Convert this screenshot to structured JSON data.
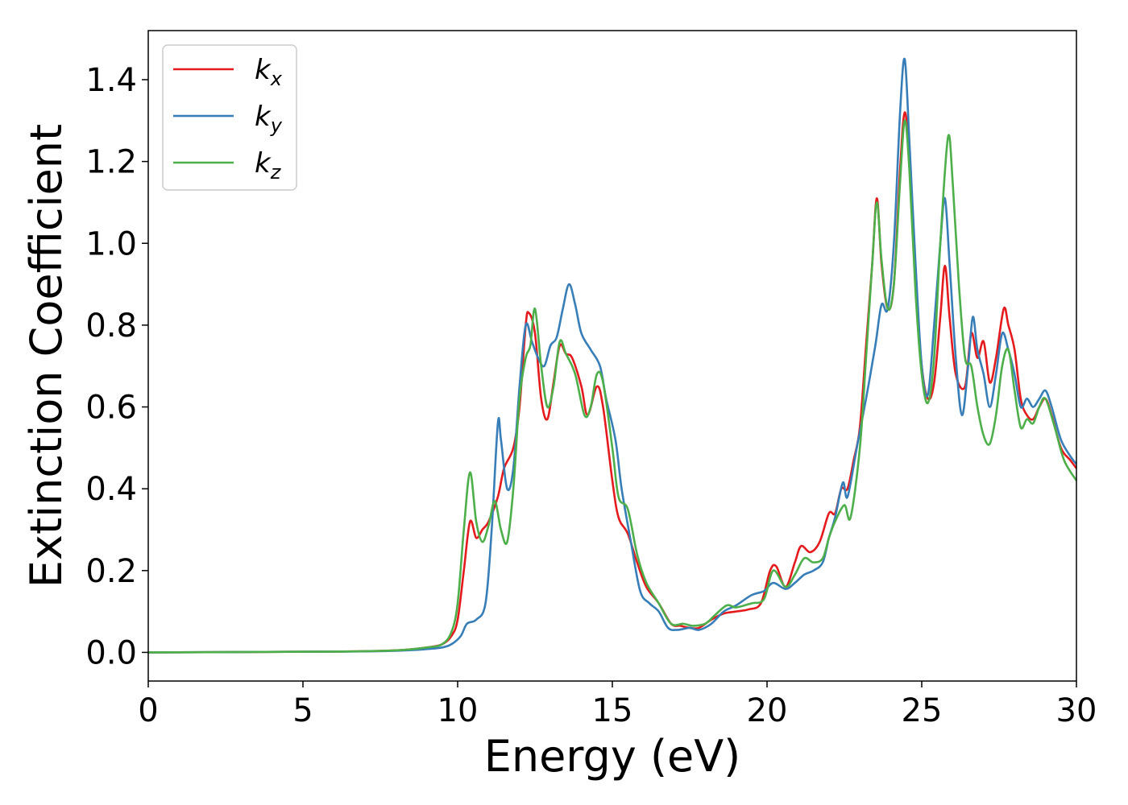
{
  "chart_data": {
    "type": "line",
    "title": "",
    "xlabel": "Energy (eV)",
    "ylabel": "Extinction Coefficient",
    "xlim": [
      0,
      30
    ],
    "ylim": [
      -0.07,
      1.52
    ],
    "xticks": [
      0,
      5,
      10,
      15,
      20,
      25,
      30
    ],
    "xtick_labels": [
      "0",
      "5",
      "10",
      "15",
      "20",
      "25",
      "30"
    ],
    "yticks": [
      0.0,
      0.2,
      0.4,
      0.6,
      0.8,
      1.0,
      1.2,
      1.4
    ],
    "ytick_labels": [
      "0.0",
      "0.2",
      "0.4",
      "0.6",
      "0.8",
      "1.0",
      "1.2",
      "1.4"
    ],
    "grid": false,
    "legend_position": "top-left",
    "series": [
      {
        "name": "k",
        "subscript": "x",
        "color": "#e41a1c",
        "points": [
          [
            0,
            0
          ],
          [
            6,
            0.002
          ],
          [
            8,
            0.005
          ],
          [
            9,
            0.012
          ],
          [
            9.5,
            0.02
          ],
          [
            9.8,
            0.04
          ],
          [
            10.0,
            0.08
          ],
          [
            10.2,
            0.2
          ],
          [
            10.4,
            0.32
          ],
          [
            10.6,
            0.28
          ],
          [
            10.8,
            0.3
          ],
          [
            11.0,
            0.32
          ],
          [
            11.3,
            0.38
          ],
          [
            11.5,
            0.45
          ],
          [
            11.8,
            0.5
          ],
          [
            12.0,
            0.6
          ],
          [
            12.2,
            0.8
          ],
          [
            12.3,
            0.83
          ],
          [
            12.5,
            0.78
          ],
          [
            12.7,
            0.62
          ],
          [
            12.9,
            0.57
          ],
          [
            13.1,
            0.66
          ],
          [
            13.3,
            0.75
          ],
          [
            13.5,
            0.73
          ],
          [
            13.7,
            0.72
          ],
          [
            14.0,
            0.65
          ],
          [
            14.2,
            0.58
          ],
          [
            14.5,
            0.65
          ],
          [
            14.7,
            0.6
          ],
          [
            15.0,
            0.42
          ],
          [
            15.2,
            0.33
          ],
          [
            15.5,
            0.29
          ],
          [
            15.8,
            0.22
          ],
          [
            16.1,
            0.16
          ],
          [
            16.5,
            0.12
          ],
          [
            16.9,
            0.07
          ],
          [
            17.2,
            0.065
          ],
          [
            17.5,
            0.06
          ],
          [
            17.8,
            0.06
          ],
          [
            18.2,
            0.08
          ],
          [
            18.6,
            0.095
          ],
          [
            19.0,
            0.1
          ],
          [
            19.4,
            0.105
          ],
          [
            19.8,
            0.12
          ],
          [
            20.1,
            0.2
          ],
          [
            20.3,
            0.21
          ],
          [
            20.6,
            0.16
          ],
          [
            20.9,
            0.22
          ],
          [
            21.1,
            0.26
          ],
          [
            21.4,
            0.245
          ],
          [
            21.7,
            0.27
          ],
          [
            22.0,
            0.34
          ],
          [
            22.2,
            0.34
          ],
          [
            22.4,
            0.4
          ],
          [
            22.6,
            0.4
          ],
          [
            22.8,
            0.47
          ],
          [
            23.0,
            0.55
          ],
          [
            23.2,
            0.75
          ],
          [
            23.4,
            0.95
          ],
          [
            23.55,
            1.11
          ],
          [
            23.7,
            0.95
          ],
          [
            23.9,
            0.84
          ],
          [
            24.1,
            0.9
          ],
          [
            24.3,
            1.18
          ],
          [
            24.45,
            1.32
          ],
          [
            24.6,
            1.2
          ],
          [
            24.8,
            0.9
          ],
          [
            25.0,
            0.7
          ],
          [
            25.2,
            0.62
          ],
          [
            25.4,
            0.66
          ],
          [
            25.6,
            0.82
          ],
          [
            25.75,
            0.945
          ],
          [
            25.9,
            0.82
          ],
          [
            26.1,
            0.68
          ],
          [
            26.4,
            0.65
          ],
          [
            26.6,
            0.78
          ],
          [
            26.8,
            0.72
          ],
          [
            27.0,
            0.76
          ],
          [
            27.2,
            0.66
          ],
          [
            27.4,
            0.72
          ],
          [
            27.65,
            0.84
          ],
          [
            27.8,
            0.8
          ],
          [
            28.0,
            0.74
          ],
          [
            28.2,
            0.62
          ],
          [
            28.4,
            0.58
          ],
          [
            28.6,
            0.57
          ],
          [
            28.8,
            0.6
          ],
          [
            29.0,
            0.62
          ],
          [
            29.2,
            0.58
          ],
          [
            29.5,
            0.5
          ],
          [
            29.8,
            0.47
          ],
          [
            30,
            0.45
          ]
        ]
      },
      {
        "name": "k",
        "subscript": "y",
        "color": "#377eb8",
        "points": [
          [
            0,
            0
          ],
          [
            6,
            0.002
          ],
          [
            8,
            0.004
          ],
          [
            9,
            0.008
          ],
          [
            9.5,
            0.012
          ],
          [
            9.8,
            0.02
          ],
          [
            10.1,
            0.04
          ],
          [
            10.3,
            0.07
          ],
          [
            10.6,
            0.08
          ],
          [
            10.9,
            0.12
          ],
          [
            11.1,
            0.3
          ],
          [
            11.3,
            0.56
          ],
          [
            11.4,
            0.52
          ],
          [
            11.6,
            0.4
          ],
          [
            11.8,
            0.45
          ],
          [
            12.0,
            0.65
          ],
          [
            12.2,
            0.8
          ],
          [
            12.4,
            0.76
          ],
          [
            12.6,
            0.72
          ],
          [
            12.8,
            0.7
          ],
          [
            13.0,
            0.75
          ],
          [
            13.2,
            0.77
          ],
          [
            13.4,
            0.84
          ],
          [
            13.6,
            0.9
          ],
          [
            13.8,
            0.85
          ],
          [
            14.0,
            0.78
          ],
          [
            14.3,
            0.74
          ],
          [
            14.6,
            0.7
          ],
          [
            14.8,
            0.62
          ],
          [
            15.1,
            0.52
          ],
          [
            15.3,
            0.4
          ],
          [
            15.6,
            0.27
          ],
          [
            15.9,
            0.15
          ],
          [
            16.2,
            0.12
          ],
          [
            16.5,
            0.1
          ],
          [
            16.8,
            0.06
          ],
          [
            17.1,
            0.055
          ],
          [
            17.5,
            0.06
          ],
          [
            17.8,
            0.055
          ],
          [
            18.2,
            0.07
          ],
          [
            18.6,
            0.1
          ],
          [
            19.0,
            0.115
          ],
          [
            19.5,
            0.14
          ],
          [
            19.9,
            0.15
          ],
          [
            20.2,
            0.17
          ],
          [
            20.6,
            0.155
          ],
          [
            20.9,
            0.17
          ],
          [
            21.2,
            0.19
          ],
          [
            21.5,
            0.2
          ],
          [
            21.8,
            0.22
          ],
          [
            22.0,
            0.28
          ],
          [
            22.2,
            0.33
          ],
          [
            22.45,
            0.415
          ],
          [
            22.6,
            0.38
          ],
          [
            22.9,
            0.5
          ],
          [
            23.2,
            0.62
          ],
          [
            23.5,
            0.75
          ],
          [
            23.7,
            0.85
          ],
          [
            23.9,
            0.84
          ],
          [
            24.1,
            1.0
          ],
          [
            24.3,
            1.32
          ],
          [
            24.45,
            1.45
          ],
          [
            24.6,
            1.25
          ],
          [
            24.8,
            0.95
          ],
          [
            25.0,
            0.7
          ],
          [
            25.2,
            0.63
          ],
          [
            25.4,
            0.8
          ],
          [
            25.6,
            1.0
          ],
          [
            25.75,
            1.11
          ],
          [
            25.9,
            0.95
          ],
          [
            26.1,
            0.72
          ],
          [
            26.3,
            0.58
          ],
          [
            26.5,
            0.7
          ],
          [
            26.65,
            0.82
          ],
          [
            26.8,
            0.74
          ],
          [
            27.0,
            0.68
          ],
          [
            27.2,
            0.6
          ],
          [
            27.4,
            0.68
          ],
          [
            27.6,
            0.78
          ],
          [
            27.8,
            0.74
          ],
          [
            28.0,
            0.68
          ],
          [
            28.2,
            0.6
          ],
          [
            28.4,
            0.62
          ],
          [
            28.6,
            0.6
          ],
          [
            28.8,
            0.62
          ],
          [
            29.0,
            0.64
          ],
          [
            29.2,
            0.6
          ],
          [
            29.5,
            0.52
          ],
          [
            29.8,
            0.48
          ],
          [
            30,
            0.46
          ]
        ]
      },
      {
        "name": "k",
        "subscript": "z",
        "color": "#4daf4a",
        "points": [
          [
            0,
            0
          ],
          [
            6,
            0.002
          ],
          [
            8,
            0.005
          ],
          [
            9,
            0.012
          ],
          [
            9.5,
            0.02
          ],
          [
            9.8,
            0.05
          ],
          [
            10.0,
            0.12
          ],
          [
            10.2,
            0.3
          ],
          [
            10.4,
            0.44
          ],
          [
            10.6,
            0.32
          ],
          [
            10.8,
            0.27
          ],
          [
            11.0,
            0.31
          ],
          [
            11.2,
            0.37
          ],
          [
            11.4,
            0.3
          ],
          [
            11.6,
            0.27
          ],
          [
            11.8,
            0.4
          ],
          [
            12.0,
            0.62
          ],
          [
            12.2,
            0.72
          ],
          [
            12.35,
            0.75
          ],
          [
            12.5,
            0.84
          ],
          [
            12.7,
            0.7
          ],
          [
            12.9,
            0.6
          ],
          [
            13.1,
            0.65
          ],
          [
            13.3,
            0.76
          ],
          [
            13.5,
            0.73
          ],
          [
            13.8,
            0.68
          ],
          [
            14.1,
            0.58
          ],
          [
            14.3,
            0.6
          ],
          [
            14.5,
            0.68
          ],
          [
            14.7,
            0.66
          ],
          [
            15.0,
            0.5
          ],
          [
            15.2,
            0.38
          ],
          [
            15.5,
            0.35
          ],
          [
            15.8,
            0.24
          ],
          [
            16.1,
            0.17
          ],
          [
            16.5,
            0.12
          ],
          [
            16.9,
            0.07
          ],
          [
            17.3,
            0.07
          ],
          [
            17.6,
            0.065
          ],
          [
            18.0,
            0.07
          ],
          [
            18.3,
            0.09
          ],
          [
            18.7,
            0.115
          ],
          [
            19.0,
            0.11
          ],
          [
            19.5,
            0.12
          ],
          [
            19.9,
            0.13
          ],
          [
            20.2,
            0.2
          ],
          [
            20.6,
            0.16
          ],
          [
            20.9,
            0.19
          ],
          [
            21.2,
            0.23
          ],
          [
            21.5,
            0.22
          ],
          [
            21.8,
            0.23
          ],
          [
            22.0,
            0.28
          ],
          [
            22.2,
            0.32
          ],
          [
            22.5,
            0.36
          ],
          [
            22.7,
            0.33
          ],
          [
            23.0,
            0.5
          ],
          [
            23.2,
            0.72
          ],
          [
            23.4,
            0.95
          ],
          [
            23.55,
            1.1
          ],
          [
            23.7,
            0.96
          ],
          [
            23.9,
            0.84
          ],
          [
            24.1,
            0.9
          ],
          [
            24.3,
            1.15
          ],
          [
            24.45,
            1.3
          ],
          [
            24.6,
            1.18
          ],
          [
            24.8,
            0.88
          ],
          [
            25.0,
            0.68
          ],
          [
            25.2,
            0.61
          ],
          [
            25.4,
            0.72
          ],
          [
            25.6,
            1.0
          ],
          [
            25.85,
            1.26
          ],
          [
            26.0,
            1.15
          ],
          [
            26.2,
            0.9
          ],
          [
            26.4,
            0.72
          ],
          [
            26.6,
            0.7
          ],
          [
            26.8,
            0.6
          ],
          [
            27.0,
            0.53
          ],
          [
            27.2,
            0.51
          ],
          [
            27.4,
            0.58
          ],
          [
            27.6,
            0.7
          ],
          [
            27.8,
            0.74
          ],
          [
            28.0,
            0.64
          ],
          [
            28.2,
            0.55
          ],
          [
            28.4,
            0.57
          ],
          [
            28.6,
            0.56
          ],
          [
            28.8,
            0.6
          ],
          [
            29.0,
            0.62
          ],
          [
            29.3,
            0.55
          ],
          [
            29.6,
            0.47
          ],
          [
            30,
            0.42
          ]
        ]
      }
    ]
  }
}
